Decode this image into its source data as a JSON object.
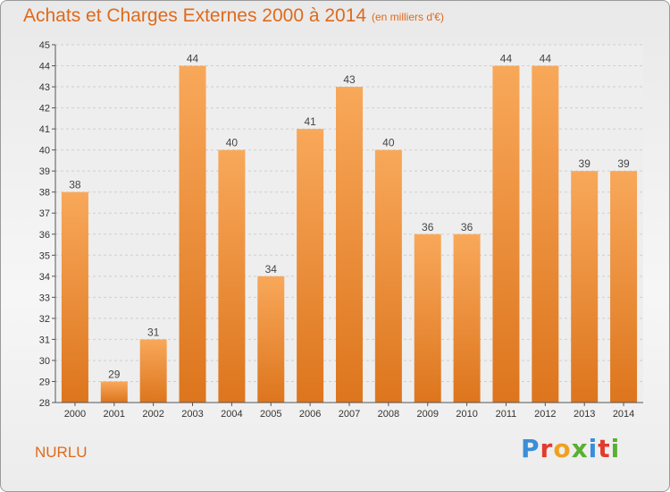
{
  "header": {
    "title": "Achats et Charges Externes 2000 à 2014",
    "subtitle": "(en milliers d'€)"
  },
  "footer": {
    "commune": "NURLU",
    "logo_text": "Proxiti"
  },
  "colors": {
    "bar_light": "#f7a556",
    "bar_dark": "#e07820",
    "title": "#e0691a"
  },
  "chart_data": {
    "type": "bar",
    "title": "Achats et Charges Externes 2000 à 2014",
    "subtitle": "(en milliers d'€)",
    "categories": [
      "2000",
      "2001",
      "2002",
      "2003",
      "2004",
      "2005",
      "2006",
      "2007",
      "2008",
      "2009",
      "2010",
      "2011",
      "2012",
      "2013",
      "2014"
    ],
    "values": [
      38,
      29,
      31,
      44,
      40,
      34,
      41,
      43,
      40,
      36,
      36,
      44,
      44,
      39,
      39
    ],
    "ylim": [
      28,
      45
    ],
    "yticks": [
      28,
      29,
      30,
      31,
      32,
      33,
      34,
      35,
      36,
      37,
      38,
      39,
      40,
      41,
      42,
      43,
      44,
      45
    ],
    "grid": true,
    "legend": "none",
    "data_labels": true
  }
}
